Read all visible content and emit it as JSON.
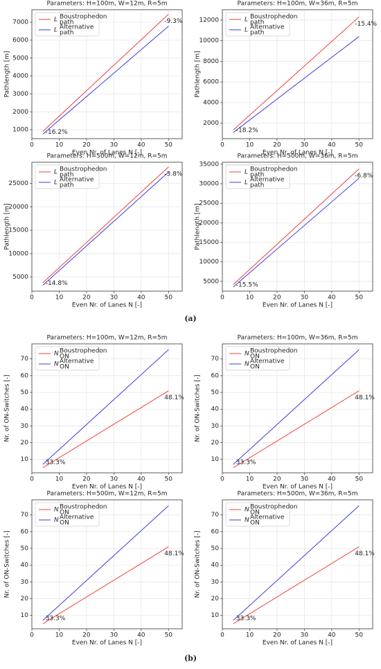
{
  "captions": [
    "(a)",
    "(b)"
  ],
  "chart_data": [
    {
      "type": "line",
      "title": "Parameters: H=100m, W=12m, R=5m",
      "x_label": "Even Nr. of Lanes N [-]",
      "y_label": "Pathlength [m]",
      "x": [
        4,
        50
      ],
      "xlim": [
        0,
        55
      ],
      "xticks": [
        0,
        10,
        20,
        30,
        40,
        50
      ],
      "ylim": [
        500,
        7700
      ],
      "yticks": [
        1000,
        2000,
        3000,
        4000,
        5000,
        6000,
        7000
      ],
      "grid": true,
      "legend": "upper left",
      "annotations": [
        "-16.2%",
        "-9.3%"
      ],
      "series": [
        {
          "name": "Boustrophedon",
          "symbol": "L",
          "subscript": "path",
          "color": "#f03c3c",
          "values": [
            900,
            7450
          ]
        },
        {
          "name": "Alternative",
          "symbol": "L",
          "subscript": "path",
          "color": "#3c3ce0",
          "values": [
            750,
            6780
          ]
        }
      ]
    },
    {
      "type": "line",
      "title": "Parameters: H=100m, W=36m, R=5m",
      "x_label": "Even Nr. of Lanes N [-]",
      "y_label": "Pathlength [m]",
      "x": [
        4,
        50
      ],
      "xlim": [
        0,
        55
      ],
      "xticks": [
        0,
        10,
        20,
        30,
        40,
        50
      ],
      "ylim": [
        500,
        13000
      ],
      "yticks": [
        2000,
        4000,
        6000,
        8000,
        10000,
        12000
      ],
      "grid": true,
      "legend": "upper left",
      "annotations": [
        "-18.2%",
        "-15.4%"
      ],
      "series": [
        {
          "name": "Boustrophedon",
          "symbol": "L",
          "subscript": "path",
          "color": "#f03c3c",
          "values": [
            1350,
            12300
          ]
        },
        {
          "name": "Alternative",
          "symbol": "L",
          "subscript": "path",
          "color": "#3c3ce0",
          "values": [
            1100,
            10400
          ]
        }
      ]
    },
    {
      "type": "line",
      "title": "Parameters: H=500m, W=12m, R=5m",
      "x_label": "Even Nr. of Lanes N [-]",
      "y_label": "Pathlength [m]",
      "x": [
        4,
        50
      ],
      "xlim": [
        0,
        55
      ],
      "xticks": [
        0,
        10,
        20,
        30,
        40,
        50
      ],
      "ylim": [
        2000,
        29500
      ],
      "yticks": [
        5000,
        10000,
        15000,
        20000,
        25000
      ],
      "grid": true,
      "legend": "upper left",
      "annotations": [
        "-14.8%",
        "-3.8%"
      ],
      "series": [
        {
          "name": "Boustrophedon",
          "symbol": "L",
          "subscript": "path",
          "color": "#f03c3c",
          "values": [
            3800,
            28500
          ]
        },
        {
          "name": "Alternative",
          "symbol": "L",
          "subscript": "path",
          "color": "#3c3ce0",
          "values": [
            3250,
            27400
          ]
        }
      ]
    },
    {
      "type": "line",
      "title": "Parameters: H=500m, W=36m, R=5m",
      "x_label": "Even Nr. of Lanes N [-]",
      "y_label": "Pathlength [m]",
      "x": [
        4,
        50
      ],
      "xlim": [
        0,
        55
      ],
      "xticks": [
        0,
        10,
        20,
        30,
        40,
        50
      ],
      "ylim": [
        2500,
        35500
      ],
      "yticks": [
        5000,
        10000,
        15000,
        20000,
        25000,
        30000,
        35000
      ],
      "grid": true,
      "legend": "upper left",
      "annotations": [
        "-15.5%",
        "-6.8%"
      ],
      "series": [
        {
          "name": "Boustrophedon",
          "symbol": "L",
          "subscript": "path",
          "color": "#f03c3c",
          "values": [
            4200,
            33800
          ]
        },
        {
          "name": "Alternative",
          "symbol": "L",
          "subscript": "path",
          "color": "#3c3ce0",
          "values": [
            3600,
            31400
          ]
        }
      ]
    },
    {
      "type": "line",
      "title": "Parameters: H=100m, W=12m, R=5m",
      "x_label": "Even Nr. of Lanes N [-]",
      "y_label": "Nr. of ON-Switches [-]",
      "x": [
        4,
        50
      ],
      "xlim": [
        0,
        55
      ],
      "xticks": [
        0,
        10,
        20,
        30,
        40,
        50
      ],
      "ylim": [
        2,
        79
      ],
      "yticks": [
        10,
        20,
        30,
        40,
        50,
        60,
        70
      ],
      "grid": true,
      "legend": "upper left",
      "annotations": [
        "33.3%",
        "48.1%"
      ],
      "series": [
        {
          "name": "Boustrophedon",
          "symbol": "N",
          "subscript": "ON",
          "color": "#f03c3c",
          "values": [
            5,
            51
          ]
        },
        {
          "name": "Alternative",
          "symbol": "N",
          "subscript": "ON",
          "color": "#3c3ce0",
          "values": [
            7,
            75.5
          ]
        }
      ]
    },
    {
      "type": "line",
      "title": "Parameters: H=100m, W=36m, R=5m",
      "x_label": "Even Nr. of Lanes N [-]",
      "y_label": "Nr. of ON-Switches [-]",
      "x": [
        4,
        50
      ],
      "xlim": [
        0,
        55
      ],
      "xticks": [
        0,
        10,
        20,
        30,
        40,
        50
      ],
      "ylim": [
        2,
        79
      ],
      "yticks": [
        10,
        20,
        30,
        40,
        50,
        60,
        70
      ],
      "grid": true,
      "legend": "upper left",
      "annotations": [
        "33.3%",
        "48.1%"
      ],
      "series": [
        {
          "name": "Boustrophedon",
          "symbol": "N",
          "subscript": "ON",
          "color": "#f03c3c",
          "values": [
            5,
            51
          ]
        },
        {
          "name": "Alternative",
          "symbol": "N",
          "subscript": "ON",
          "color": "#3c3ce0",
          "values": [
            7,
            75.5
          ]
        }
      ]
    },
    {
      "type": "line",
      "title": "Parameters: H=500m, W=12m, R=5m",
      "x_label": "Even Nr. of Lanes N [-]",
      "y_label": "Nr. of ON-Switches [-]",
      "x": [
        4,
        50
      ],
      "xlim": [
        0,
        55
      ],
      "xticks": [
        0,
        10,
        20,
        30,
        40,
        50
      ],
      "ylim": [
        2,
        79
      ],
      "yticks": [
        10,
        20,
        30,
        40,
        50,
        60,
        70
      ],
      "grid": true,
      "legend": "upper left",
      "annotations": [
        "33.3%",
        "48.1%"
      ],
      "series": [
        {
          "name": "Boustrophedon",
          "symbol": "N",
          "subscript": "ON",
          "color": "#f03c3c",
          "values": [
            5,
            51
          ]
        },
        {
          "name": "Alternative",
          "symbol": "N",
          "subscript": "ON",
          "color": "#3c3ce0",
          "values": [
            7,
            75.5
          ]
        }
      ]
    },
    {
      "type": "line",
      "title": "Parameters: H=500m, W=36m, R=5m",
      "x_label": "Even Nr. of Lanes N [-]",
      "y_label": "Nr. of ON-Switches [-]",
      "x": [
        4,
        50
      ],
      "xlim": [
        0,
        55
      ],
      "xticks": [
        0,
        10,
        20,
        30,
        40,
        50
      ],
      "ylim": [
        2,
        79
      ],
      "yticks": [
        10,
        20,
        30,
        40,
        50,
        60,
        70
      ],
      "grid": true,
      "legend": "upper left",
      "annotations": [
        "33.3%",
        "48.1%"
      ],
      "series": [
        {
          "name": "Boustrophedon",
          "symbol": "N",
          "subscript": "ON",
          "color": "#f03c3c",
          "values": [
            5,
            51
          ]
        },
        {
          "name": "Alternative",
          "symbol": "N",
          "subscript": "ON",
          "color": "#3c3ce0",
          "values": [
            7,
            75.5
          ]
        }
      ]
    }
  ]
}
